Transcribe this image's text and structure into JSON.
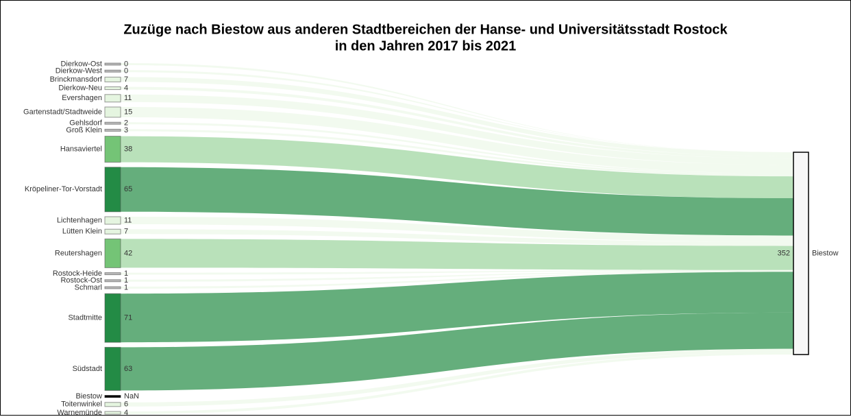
{
  "chart_data": {
    "type": "sankey",
    "title_lines": [
      "Zuzüge nach Biestow aus anderen Stadtbereichen der Hanse- und Universitätsstadt Rostock",
      "in den Jahren 2017 bis 2021"
    ],
    "categories": [
      "Dierkow-Ost",
      "Dierkow-West",
      "Brinckmansdorf",
      "Dierkow-Neu",
      "Evershagen",
      "Gartenstadt/Stadtweide",
      "Gehlsdorf",
      "Groß Klein",
      "Hansaviertel",
      "Kröpeliner-Tor-Vorstadt",
      "Lichtenhagen",
      "Lütten Klein",
      "Reutershagen",
      "Rostock-Heide",
      "Rostock-Ost",
      "Schmarl",
      "Stadtmitte",
      "Südstadt",
      "Biestow",
      "Toitenwinkel",
      "Warnemünde"
    ],
    "values": [
      0,
      0,
      7,
      4,
      11,
      15,
      2,
      3,
      38,
      65,
      11,
      7,
      42,
      1,
      1,
      1,
      71,
      63,
      null,
      6,
      4
    ],
    "value_labels": [
      "0",
      "0",
      "7",
      "4",
      "11",
      "15",
      "2",
      "3",
      "38",
      "65",
      "11",
      "7",
      "42",
      "1",
      "1",
      "1",
      "71",
      "63",
      "NaN",
      "6",
      "4"
    ],
    "colors": [
      "#bbbbbb",
      "#bbbbbb",
      "#e5f5e0",
      "#e5f5e0",
      "#e5f5e0",
      "#e5f5e0",
      "#bbbbbb",
      "#bbbbbb",
      "#74c476",
      "#238b45",
      "#e5f5e0",
      "#e5f5e0",
      "#74c476",
      "#bbbbbb",
      "#bbbbbb",
      "#bbbbbb",
      "#238b45",
      "#238b45",
      "#000000",
      "#e5f5e0",
      "#e5f5e0"
    ],
    "target": {
      "name": "Biestow",
      "value": 352
    }
  }
}
